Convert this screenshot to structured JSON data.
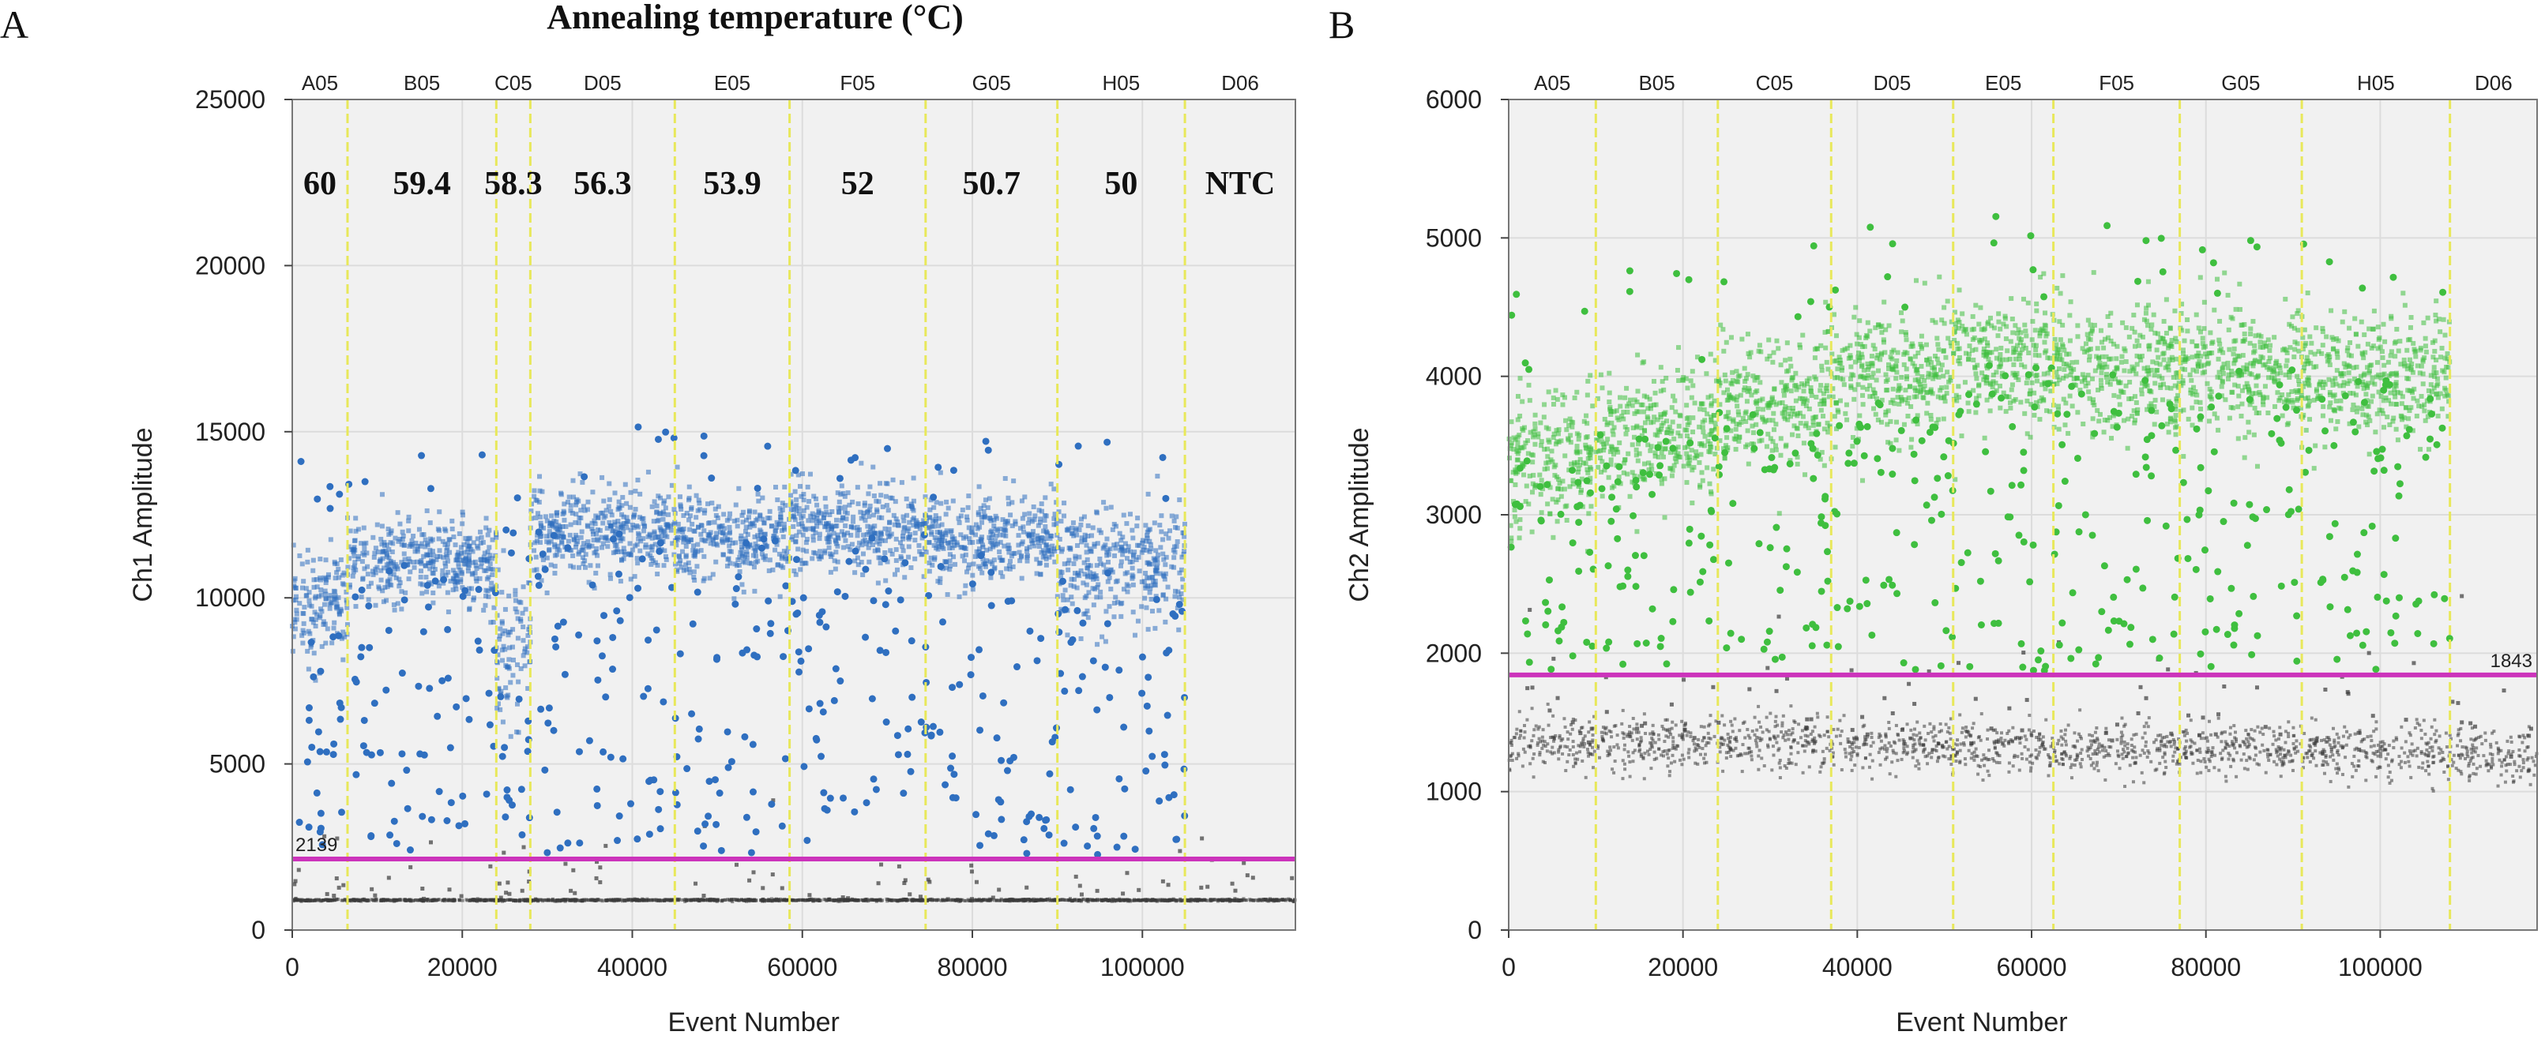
{
  "figure": {
    "title": "Annealing temperature (°C)",
    "panels": [
      "A",
      "B"
    ]
  },
  "colors": {
    "positive_ch1": "#2f6fc0",
    "positive_ch2": "#3fbf3f",
    "negative": "#3a3a3a",
    "threshold": "#cc33bb",
    "well_divider": "#e8e85a",
    "plot_background": "#f1f1f1",
    "grid": "#dcdcdc"
  },
  "chart_data": [
    {
      "type": "scatter",
      "panel": "A",
      "xlabel": "Event Number",
      "ylabel": "Ch1 Amplitude",
      "xlim": [
        0,
        118000
      ],
      "ylim": [
        0,
        25000
      ],
      "xticks": [
        0,
        20000,
        40000,
        60000,
        80000,
        100000
      ],
      "yticks": [
        0,
        5000,
        10000,
        15000,
        20000,
        25000
      ],
      "grid": true,
      "threshold": 2139,
      "threshold_label": "2139",
      "wells": [
        {
          "name": "A05",
          "start": 0,
          "end": 6500,
          "temp_label": "60",
          "positive_center": 9800,
          "positive_spread": 900,
          "negative_center": 900
        },
        {
          "name": "B05",
          "start": 6500,
          "end": 24000,
          "temp_label": "59.4",
          "positive_center": 11100,
          "positive_spread": 650,
          "negative_center": 900
        },
        {
          "name": "C05",
          "start": 24000,
          "end": 28000,
          "temp_label": "58.3",
          "positive_center": 8600,
          "positive_spread": 1100,
          "negative_center": 900
        },
        {
          "name": "D05",
          "start": 28000,
          "end": 45000,
          "temp_label": "56.3",
          "positive_center": 12000,
          "positive_spread": 650,
          "negative_center": 900
        },
        {
          "name": "E05",
          "start": 45000,
          "end": 58500,
          "temp_label": "53.9",
          "positive_center": 11800,
          "positive_spread": 650,
          "negative_center": 900
        },
        {
          "name": "F05",
          "start": 58500,
          "end": 74500,
          "temp_label": "52",
          "positive_center": 12100,
          "positive_spread": 650,
          "negative_center": 900
        },
        {
          "name": "G05",
          "start": 74500,
          "end": 90000,
          "temp_label": "50.7",
          "positive_center": 11700,
          "positive_spread": 650,
          "negative_center": 900
        },
        {
          "name": "H05",
          "start": 90000,
          "end": 105000,
          "temp_label": "50",
          "positive_center": 11000,
          "positive_spread": 850,
          "negative_center": 900
        },
        {
          "name": "D06",
          "start": 105000,
          "end": 118000,
          "temp_label": "NTC",
          "positive_center": null,
          "positive_spread": 0,
          "negative_center": 900
        }
      ]
    },
    {
      "type": "scatter",
      "panel": "B",
      "xlabel": "Event Number",
      "ylabel": "Ch2 Amplitude",
      "xlim": [
        0,
        118000
      ],
      "ylim": [
        0,
        6000
      ],
      "xticks": [
        0,
        20000,
        40000,
        60000,
        80000,
        100000
      ],
      "yticks": [
        0,
        1000,
        2000,
        3000,
        4000,
        5000,
        6000
      ],
      "grid": true,
      "threshold": 1843,
      "threshold_label": "1843",
      "wells": [
        {
          "name": "A05",
          "start": 0,
          "end": 10000,
          "positive_center": 3400,
          "positive_spread": 260,
          "negative_center": 1350
        },
        {
          "name": "B05",
          "start": 10000,
          "end": 24000,
          "positive_center": 3600,
          "positive_spread": 240,
          "negative_center": 1350
        },
        {
          "name": "C05",
          "start": 24000,
          "end": 37000,
          "positive_center": 3800,
          "positive_spread": 240,
          "negative_center": 1350
        },
        {
          "name": "D05",
          "start": 37000,
          "end": 51000,
          "positive_center": 4000,
          "positive_spread": 230,
          "negative_center": 1330
        },
        {
          "name": "E05",
          "start": 51000,
          "end": 62500,
          "positive_center": 4100,
          "positive_spread": 230,
          "negative_center": 1320
        },
        {
          "name": "F05",
          "start": 62500,
          "end": 77000,
          "positive_center": 4050,
          "positive_spread": 230,
          "negative_center": 1310
        },
        {
          "name": "G05",
          "start": 77000,
          "end": 91000,
          "positive_center": 4050,
          "positive_spread": 230,
          "negative_center": 1300
        },
        {
          "name": "H05",
          "start": 91000,
          "end": 108000,
          "positive_center": 4000,
          "positive_spread": 230,
          "negative_center": 1290
        },
        {
          "name": "D06",
          "start": 108000,
          "end": 118000,
          "positive_center": null,
          "positive_spread": 0,
          "negative_center": 1250
        }
      ]
    }
  ]
}
